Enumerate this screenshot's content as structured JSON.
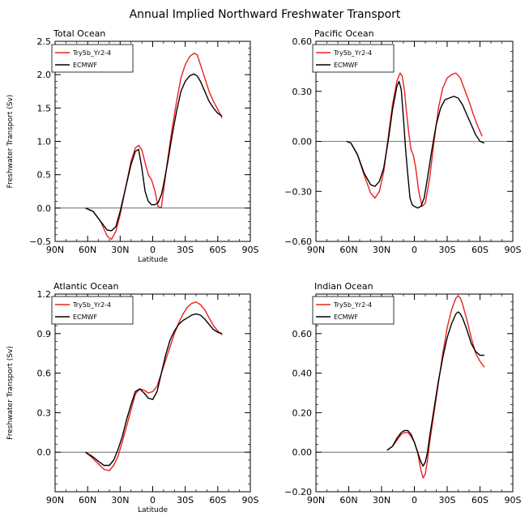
{
  "figure": {
    "title": "Annual Implied Northward Freshwater Transport",
    "xlabel": "Latitude",
    "ylabel": "Freshwater Transport (Sv)"
  },
  "colors": {
    "model": "#e8221c",
    "reference": "#000000",
    "zero_line": "#555555"
  },
  "chart_data": [
    {
      "type": "line",
      "title": "Total Ocean",
      "xlabel": "Latitude",
      "ylabel": "Freshwater Transport (Sv)",
      "xlim": [
        -90,
        90
      ],
      "ylim": [
        -0.5,
        2.5
      ],
      "x_ticks": [
        -90,
        -60,
        -30,
        0,
        30,
        60,
        90
      ],
      "x_tick_labels": [
        "90N",
        "60N",
        "30N",
        "0",
        "30S",
        "60S",
        "90S"
      ],
      "y_ticks": [
        -0.5,
        0.0,
        0.5,
        1.0,
        1.5,
        2.0,
        2.5
      ],
      "y_tick_labels": [
        "−0.5",
        "0.0",
        "0.5",
        "1.0",
        "1.5",
        "2.0",
        "2.5"
      ],
      "series": [
        {
          "name": "Try5b_Yr2-4",
          "color": "#e8221c",
          "x": [
            -62,
            -55,
            -48,
            -42,
            -38,
            -34,
            -30,
            -25,
            -20,
            -16,
            -13,
            -10,
            -7,
            -4,
            -1,
            2,
            5,
            8,
            10,
            14,
            18,
            22,
            26,
            30,
            34,
            38,
            41,
            44,
            48,
            52,
            56,
            60,
            64
          ],
          "y": [
            0.0,
            -0.05,
            -0.2,
            -0.42,
            -0.47,
            -0.35,
            -0.1,
            0.3,
            0.7,
            0.9,
            0.94,
            0.87,
            0.68,
            0.5,
            0.42,
            0.26,
            0.02,
            0.01,
            0.26,
            0.75,
            1.2,
            1.6,
            1.95,
            2.15,
            2.27,
            2.32,
            2.3,
            2.15,
            1.95,
            1.75,
            1.6,
            1.48,
            1.35
          ]
        },
        {
          "name": "ECMWF",
          "color": "#000000",
          "x": [
            -62,
            -55,
            -48,
            -42,
            -38,
            -34,
            -30,
            -25,
            -20,
            -16,
            -13,
            -10,
            -7,
            -4,
            -1,
            2,
            5,
            8,
            10,
            14,
            18,
            22,
            26,
            30,
            34,
            38,
            41,
            44,
            48,
            52,
            56,
            60,
            64
          ],
          "y": [
            0.0,
            -0.05,
            -0.2,
            -0.33,
            -0.34,
            -0.28,
            -0.05,
            0.3,
            0.65,
            0.85,
            0.88,
            0.6,
            0.25,
            0.1,
            0.05,
            0.05,
            0.08,
            0.2,
            0.35,
            0.7,
            1.1,
            1.45,
            1.75,
            1.9,
            1.98,
            2.01,
            1.98,
            1.9,
            1.75,
            1.6,
            1.5,
            1.42,
            1.38
          ]
        }
      ]
    },
    {
      "type": "line",
      "title": "Pacific Ocean",
      "xlim": [
        -90,
        90
      ],
      "ylim": [
        -0.6,
        0.6
      ],
      "x_ticks": [
        -90,
        -60,
        -30,
        0,
        30,
        60,
        90
      ],
      "x_tick_labels": [
        "90N",
        "60N",
        "30N",
        "0",
        "30S",
        "60S",
        "90S"
      ],
      "y_ticks": [
        -0.6,
        -0.3,
        0.0,
        0.3,
        0.6
      ],
      "y_tick_labels": [
        "−0.60",
        "−0.30",
        "0.00",
        "0.30",
        "0.60"
      ],
      "series": [
        {
          "name": "Try5b_Yr2-4",
          "color": "#e8221c",
          "x": [
            -62,
            -58,
            -52,
            -46,
            -40,
            -36,
            -32,
            -28,
            -24,
            -20,
            -16,
            -13,
            -11,
            -9,
            -7,
            -5,
            -3,
            -1,
            1,
            4,
            7,
            10,
            14,
            18,
            22,
            26,
            30,
            34,
            38,
            42,
            46,
            50,
            54,
            58,
            62
          ],
          "y": [
            0.0,
            -0.01,
            -0.08,
            -0.2,
            -0.31,
            -0.34,
            -0.3,
            -0.18,
            0.02,
            0.22,
            0.36,
            0.41,
            0.39,
            0.3,
            0.16,
            0.04,
            -0.05,
            -0.08,
            -0.15,
            -0.3,
            -0.39,
            -0.37,
            -0.22,
            0.0,
            0.2,
            0.32,
            0.38,
            0.4,
            0.41,
            0.38,
            0.31,
            0.24,
            0.16,
            0.09,
            0.03
          ]
        },
        {
          "name": "ECMWF",
          "color": "#000000",
          "x": [
            -62,
            -58,
            -52,
            -46,
            -40,
            -36,
            -32,
            -28,
            -24,
            -20,
            -16,
            -14,
            -12,
            -10,
            -8,
            -6,
            -4,
            -2,
            0,
            3,
            6,
            9,
            12,
            16,
            20,
            24,
            28,
            32,
            36,
            40,
            44,
            48,
            52,
            56,
            60,
            64
          ],
          "y": [
            0.0,
            -0.01,
            -0.08,
            -0.19,
            -0.26,
            -0.27,
            -0.24,
            -0.16,
            0.0,
            0.19,
            0.33,
            0.36,
            0.31,
            0.14,
            -0.05,
            -0.2,
            -0.34,
            -0.38,
            -0.39,
            -0.4,
            -0.39,
            -0.34,
            -0.22,
            -0.05,
            0.1,
            0.2,
            0.25,
            0.26,
            0.27,
            0.26,
            0.22,
            0.16,
            0.1,
            0.04,
            0.0,
            -0.01
          ]
        }
      ]
    },
    {
      "type": "line",
      "title": "Atlantic Ocean",
      "xlabel": "Latitude",
      "ylabel": "Freshwater Transport (Sv)",
      "xlim": [
        -90,
        90
      ],
      "ylim": [
        -0.3,
        1.2
      ],
      "x_ticks": [
        -90,
        -60,
        -30,
        0,
        30,
        60,
        90
      ],
      "x_tick_labels": [
        "90N",
        "60N",
        "30N",
        "0",
        "30S",
        "60S",
        "90S"
      ],
      "y_ticks": [
        0.0,
        0.3,
        0.6,
        0.9,
        1.2
      ],
      "y_tick_labels": [
        "0.0",
        "0.3",
        "0.6",
        "0.9",
        "1.2"
      ],
      "series": [
        {
          "name": "Try5b_Yr2-4",
          "color": "#e8221c",
          "x": [
            -62,
            -56,
            -50,
            -45,
            -40,
            -36,
            -32,
            -28,
            -24,
            -20,
            -16,
            -12,
            -8,
            -4,
            0,
            4,
            8,
            12,
            16,
            20,
            24,
            28,
            32,
            36,
            40,
            44,
            48,
            52,
            56,
            60,
            64
          ],
          "y": [
            0.0,
            -0.04,
            -0.09,
            -0.13,
            -0.14,
            -0.1,
            -0.03,
            0.08,
            0.2,
            0.32,
            0.44,
            0.48,
            0.47,
            0.45,
            0.46,
            0.5,
            0.6,
            0.7,
            0.8,
            0.9,
            0.98,
            1.05,
            1.1,
            1.13,
            1.14,
            1.12,
            1.08,
            1.02,
            0.96,
            0.92,
            0.89
          ]
        },
        {
          "name": "ECMWF",
          "color": "#000000",
          "x": [
            -62,
            -56,
            -50,
            -45,
            -40,
            -36,
            -32,
            -28,
            -24,
            -20,
            -16,
            -12,
            -8,
            -4,
            0,
            4,
            8,
            12,
            16,
            20,
            24,
            28,
            32,
            36,
            40,
            44,
            48,
            52,
            56,
            60,
            64
          ],
          "y": [
            0.0,
            -0.03,
            -0.07,
            -0.1,
            -0.1,
            -0.06,
            0.02,
            0.12,
            0.25,
            0.36,
            0.46,
            0.48,
            0.45,
            0.41,
            0.4,
            0.46,
            0.6,
            0.74,
            0.85,
            0.92,
            0.97,
            1.0,
            1.02,
            1.04,
            1.05,
            1.04,
            1.01,
            0.97,
            0.93,
            0.91,
            0.9
          ]
        }
      ]
    },
    {
      "type": "line",
      "title": "Indian Ocean",
      "xlim": [
        -90,
        90
      ],
      "ylim": [
        -0.2,
        0.8
      ],
      "x_ticks": [
        -90,
        -60,
        -30,
        0,
        30,
        60,
        90
      ],
      "x_tick_labels": [
        "90N",
        "60N",
        "30N",
        "0",
        "30S",
        "60S",
        "90S"
      ],
      "y_ticks": [
        -0.2,
        0.0,
        0.2,
        0.4,
        0.6
      ],
      "y_tick_labels": [
        "−0.20",
        "0.00",
        "0.20",
        "0.40",
        "0.60"
      ],
      "series": [
        {
          "name": "Try5b_Yr2-4",
          "color": "#e8221c",
          "x": [
            -25,
            -20,
            -16,
            -12,
            -9,
            -6,
            -3,
            0,
            3,
            6,
            8,
            10,
            12,
            14,
            18,
            22,
            26,
            30,
            34,
            38,
            40,
            42,
            44,
            48,
            52,
            56,
            60,
            64
          ],
          "y": [
            0.01,
            0.03,
            0.06,
            0.09,
            0.1,
            0.1,
            0.08,
            0.05,
            0.0,
            -0.09,
            -0.13,
            -0.11,
            -0.04,
            0.05,
            0.2,
            0.35,
            0.5,
            0.63,
            0.72,
            0.78,
            0.79,
            0.78,
            0.75,
            0.67,
            0.58,
            0.5,
            0.46,
            0.43
          ]
        },
        {
          "name": "ECMWF",
          "color": "#000000",
          "x": [
            -25,
            -20,
            -16,
            -12,
            -9,
            -6,
            -3,
            0,
            3,
            6,
            8,
            10,
            12,
            14,
            18,
            22,
            26,
            30,
            34,
            38,
            40,
            42,
            44,
            48,
            52,
            56,
            60,
            64
          ],
          "y": [
            0.01,
            0.03,
            0.07,
            0.1,
            0.11,
            0.11,
            0.09,
            0.05,
            0.0,
            -0.05,
            -0.07,
            -0.05,
            0.0,
            0.08,
            0.22,
            0.36,
            0.48,
            0.58,
            0.65,
            0.7,
            0.71,
            0.7,
            0.68,
            0.62,
            0.55,
            0.51,
            0.49,
            0.49
          ]
        }
      ]
    }
  ]
}
